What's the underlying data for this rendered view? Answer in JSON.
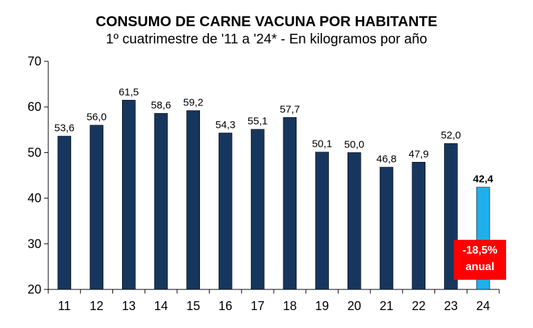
{
  "chart_data": {
    "type": "bar",
    "title": "CONSUMO DE CARNE VACUNA POR HABITANTE",
    "subtitle": "1º cuatrimestre de '11 a '24* - En kilogramos por año",
    "xlabel": "",
    "ylabel": "",
    "ylim": [
      20,
      70
    ],
    "yticks": [
      20,
      30,
      40,
      50,
      60,
      70
    ],
    "categories": [
      "11",
      "12",
      "13",
      "14",
      "15",
      "16",
      "17",
      "18",
      "19",
      "20",
      "21",
      "22",
      "23",
      "24"
    ],
    "values": [
      53.6,
      56.0,
      61.5,
      58.6,
      59.2,
      54.3,
      55.1,
      57.7,
      50.1,
      50.0,
      46.8,
      47.9,
      52.0,
      42.4
    ],
    "data_labels": [
      "53,6",
      "56,0",
      "61,5",
      "58,6",
      "59,2",
      "54,3",
      "55,1",
      "57,7",
      "50,1",
      "50,0",
      "46,8",
      "47,9",
      "52,0",
      "42,4"
    ],
    "grid": false,
    "colors": {
      "bar": "#17365d",
      "highlight_bar": "#1fb0ec",
      "badge": "#ff0000"
    },
    "annotation": {
      "line1": "-18,5%",
      "line2": "anual"
    }
  }
}
